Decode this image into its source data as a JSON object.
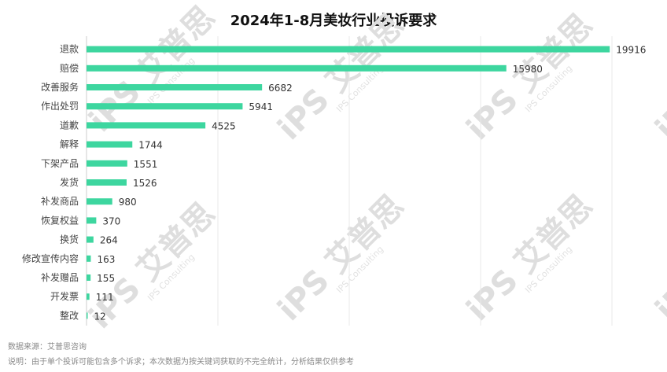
{
  "chart_data": {
    "type": "bar",
    "orientation": "horizontal",
    "title": "2024年1-8月美妆行业投诉要求",
    "categories": [
      "退款",
      "赔偿",
      "改善服务",
      "作出处罚",
      "道歉",
      "解释",
      "下架产品",
      "发货",
      "补发商品",
      "恢复权益",
      "换货",
      "修改宣传内容",
      "补发赠品",
      "开发票",
      "整改"
    ],
    "values": [
      19916,
      15980,
      6682,
      5941,
      4525,
      1744,
      1551,
      1526,
      980,
      370,
      264,
      163,
      155,
      111,
      12
    ],
    "xlim": [
      0,
      20000
    ],
    "grid": true,
    "bar_color": "#3dd69f"
  },
  "footer": {
    "source": "数据来源：艾普思咨询",
    "note": "说明：由于单个投诉可能包含多个诉求；本次数据为按关键词获取的不完全统计，分析结果仅供参考"
  },
  "watermark": {
    "brand": "iPS 艾普思",
    "sub": "IPS Consulting"
  }
}
